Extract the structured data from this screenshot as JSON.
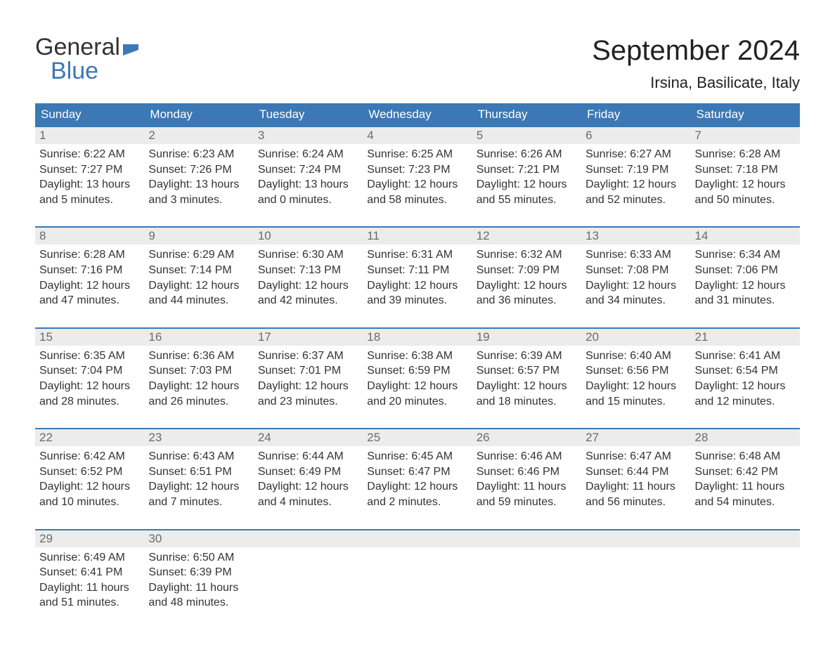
{
  "brand": {
    "word1": "General",
    "word2": "Blue"
  },
  "title": "September 2024",
  "location": "Irsina, Basilicate, Italy",
  "colors": {
    "header_bg": "#3b78b5",
    "header_text": "#ffffff",
    "daynum_bg": "#ececec",
    "daynum_text": "#6b6b6b",
    "cell_border": "#3b78b5",
    "body_text": "#333333",
    "page_bg": "#ffffff",
    "brand_blue": "#3b78b5"
  },
  "typography": {
    "title_fontsize": 40,
    "location_fontsize": 22,
    "dow_fontsize": 17,
    "daynum_fontsize": 17,
    "body_fontsize": 16,
    "logo_fontsize": 34
  },
  "days_of_week": [
    "Sunday",
    "Monday",
    "Tuesday",
    "Wednesday",
    "Thursday",
    "Friday",
    "Saturday"
  ],
  "weeks": [
    [
      {
        "n": "1",
        "sunrise": "Sunrise: 6:22 AM",
        "sunset": "Sunset: 7:27 PM",
        "dl1": "Daylight: 13 hours",
        "dl2": "and 5 minutes."
      },
      {
        "n": "2",
        "sunrise": "Sunrise: 6:23 AM",
        "sunset": "Sunset: 7:26 PM",
        "dl1": "Daylight: 13 hours",
        "dl2": "and 3 minutes."
      },
      {
        "n": "3",
        "sunrise": "Sunrise: 6:24 AM",
        "sunset": "Sunset: 7:24 PM",
        "dl1": "Daylight: 13 hours",
        "dl2": "and 0 minutes."
      },
      {
        "n": "4",
        "sunrise": "Sunrise: 6:25 AM",
        "sunset": "Sunset: 7:23 PM",
        "dl1": "Daylight: 12 hours",
        "dl2": "and 58 minutes."
      },
      {
        "n": "5",
        "sunrise": "Sunrise: 6:26 AM",
        "sunset": "Sunset: 7:21 PM",
        "dl1": "Daylight: 12 hours",
        "dl2": "and 55 minutes."
      },
      {
        "n": "6",
        "sunrise": "Sunrise: 6:27 AM",
        "sunset": "Sunset: 7:19 PM",
        "dl1": "Daylight: 12 hours",
        "dl2": "and 52 minutes."
      },
      {
        "n": "7",
        "sunrise": "Sunrise: 6:28 AM",
        "sunset": "Sunset: 7:18 PM",
        "dl1": "Daylight: 12 hours",
        "dl2": "and 50 minutes."
      }
    ],
    [
      {
        "n": "8",
        "sunrise": "Sunrise: 6:28 AM",
        "sunset": "Sunset: 7:16 PM",
        "dl1": "Daylight: 12 hours",
        "dl2": "and 47 minutes."
      },
      {
        "n": "9",
        "sunrise": "Sunrise: 6:29 AM",
        "sunset": "Sunset: 7:14 PM",
        "dl1": "Daylight: 12 hours",
        "dl2": "and 44 minutes."
      },
      {
        "n": "10",
        "sunrise": "Sunrise: 6:30 AM",
        "sunset": "Sunset: 7:13 PM",
        "dl1": "Daylight: 12 hours",
        "dl2": "and 42 minutes."
      },
      {
        "n": "11",
        "sunrise": "Sunrise: 6:31 AM",
        "sunset": "Sunset: 7:11 PM",
        "dl1": "Daylight: 12 hours",
        "dl2": "and 39 minutes."
      },
      {
        "n": "12",
        "sunrise": "Sunrise: 6:32 AM",
        "sunset": "Sunset: 7:09 PM",
        "dl1": "Daylight: 12 hours",
        "dl2": "and 36 minutes."
      },
      {
        "n": "13",
        "sunrise": "Sunrise: 6:33 AM",
        "sunset": "Sunset: 7:08 PM",
        "dl1": "Daylight: 12 hours",
        "dl2": "and 34 minutes."
      },
      {
        "n": "14",
        "sunrise": "Sunrise: 6:34 AM",
        "sunset": "Sunset: 7:06 PM",
        "dl1": "Daylight: 12 hours",
        "dl2": "and 31 minutes."
      }
    ],
    [
      {
        "n": "15",
        "sunrise": "Sunrise: 6:35 AM",
        "sunset": "Sunset: 7:04 PM",
        "dl1": "Daylight: 12 hours",
        "dl2": "and 28 minutes."
      },
      {
        "n": "16",
        "sunrise": "Sunrise: 6:36 AM",
        "sunset": "Sunset: 7:03 PM",
        "dl1": "Daylight: 12 hours",
        "dl2": "and 26 minutes."
      },
      {
        "n": "17",
        "sunrise": "Sunrise: 6:37 AM",
        "sunset": "Sunset: 7:01 PM",
        "dl1": "Daylight: 12 hours",
        "dl2": "and 23 minutes."
      },
      {
        "n": "18",
        "sunrise": "Sunrise: 6:38 AM",
        "sunset": "Sunset: 6:59 PM",
        "dl1": "Daylight: 12 hours",
        "dl2": "and 20 minutes."
      },
      {
        "n": "19",
        "sunrise": "Sunrise: 6:39 AM",
        "sunset": "Sunset: 6:57 PM",
        "dl1": "Daylight: 12 hours",
        "dl2": "and 18 minutes."
      },
      {
        "n": "20",
        "sunrise": "Sunrise: 6:40 AM",
        "sunset": "Sunset: 6:56 PM",
        "dl1": "Daylight: 12 hours",
        "dl2": "and 15 minutes."
      },
      {
        "n": "21",
        "sunrise": "Sunrise: 6:41 AM",
        "sunset": "Sunset: 6:54 PM",
        "dl1": "Daylight: 12 hours",
        "dl2": "and 12 minutes."
      }
    ],
    [
      {
        "n": "22",
        "sunrise": "Sunrise: 6:42 AM",
        "sunset": "Sunset: 6:52 PM",
        "dl1": "Daylight: 12 hours",
        "dl2": "and 10 minutes."
      },
      {
        "n": "23",
        "sunrise": "Sunrise: 6:43 AM",
        "sunset": "Sunset: 6:51 PM",
        "dl1": "Daylight: 12 hours",
        "dl2": "and 7 minutes."
      },
      {
        "n": "24",
        "sunrise": "Sunrise: 6:44 AM",
        "sunset": "Sunset: 6:49 PM",
        "dl1": "Daylight: 12 hours",
        "dl2": "and 4 minutes."
      },
      {
        "n": "25",
        "sunrise": "Sunrise: 6:45 AM",
        "sunset": "Sunset: 6:47 PM",
        "dl1": "Daylight: 12 hours",
        "dl2": "and 2 minutes."
      },
      {
        "n": "26",
        "sunrise": "Sunrise: 6:46 AM",
        "sunset": "Sunset: 6:46 PM",
        "dl1": "Daylight: 11 hours",
        "dl2": "and 59 minutes."
      },
      {
        "n": "27",
        "sunrise": "Sunrise: 6:47 AM",
        "sunset": "Sunset: 6:44 PM",
        "dl1": "Daylight: 11 hours",
        "dl2": "and 56 minutes."
      },
      {
        "n": "28",
        "sunrise": "Sunrise: 6:48 AM",
        "sunset": "Sunset: 6:42 PM",
        "dl1": "Daylight: 11 hours",
        "dl2": "and 54 minutes."
      }
    ],
    [
      {
        "n": "29",
        "sunrise": "Sunrise: 6:49 AM",
        "sunset": "Sunset: 6:41 PM",
        "dl1": "Daylight: 11 hours",
        "dl2": "and 51 minutes."
      },
      {
        "n": "30",
        "sunrise": "Sunrise: 6:50 AM",
        "sunset": "Sunset: 6:39 PM",
        "dl1": "Daylight: 11 hours",
        "dl2": "and 48 minutes."
      },
      null,
      null,
      null,
      null,
      null
    ]
  ]
}
